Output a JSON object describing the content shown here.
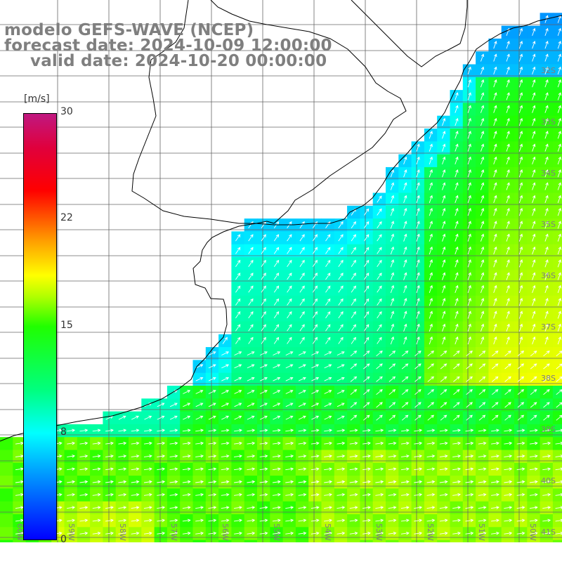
{
  "header": {
    "line1": "modelo GEFS-WAVE (NCEP)",
    "line2": "forecast date: 2024-10-09 12:00:00",
    "line3": "valid date: 2024-10-20 00:00:00"
  },
  "colorbar": {
    "unit": "[m/s]",
    "ticks": [
      "30",
      "22",
      "15",
      "8",
      "0"
    ],
    "min": 0,
    "max": 30,
    "colors": [
      "#0000ff",
      "#00a0ff",
      "#00ffff",
      "#00ff80",
      "#20ff00",
      "#b0ff00",
      "#ffff00",
      "#ffa000",
      "#ff5000",
      "#ff0000",
      "#c01880"
    ]
  },
  "map": {
    "latitude_labels": [
      "32S",
      "33S",
      "34S",
      "35S",
      "36S",
      "37S",
      "38S",
      "39S",
      "40S",
      "41S"
    ],
    "longitude_labels": [
      "60W",
      "59W",
      "58W",
      "57W",
      "56W",
      "55W",
      "54W",
      "53W",
      "52W",
      "51W",
      "50W"
    ],
    "field": "wind speed with direction arrows",
    "land_color": "#ffffff",
    "grid": true
  }
}
